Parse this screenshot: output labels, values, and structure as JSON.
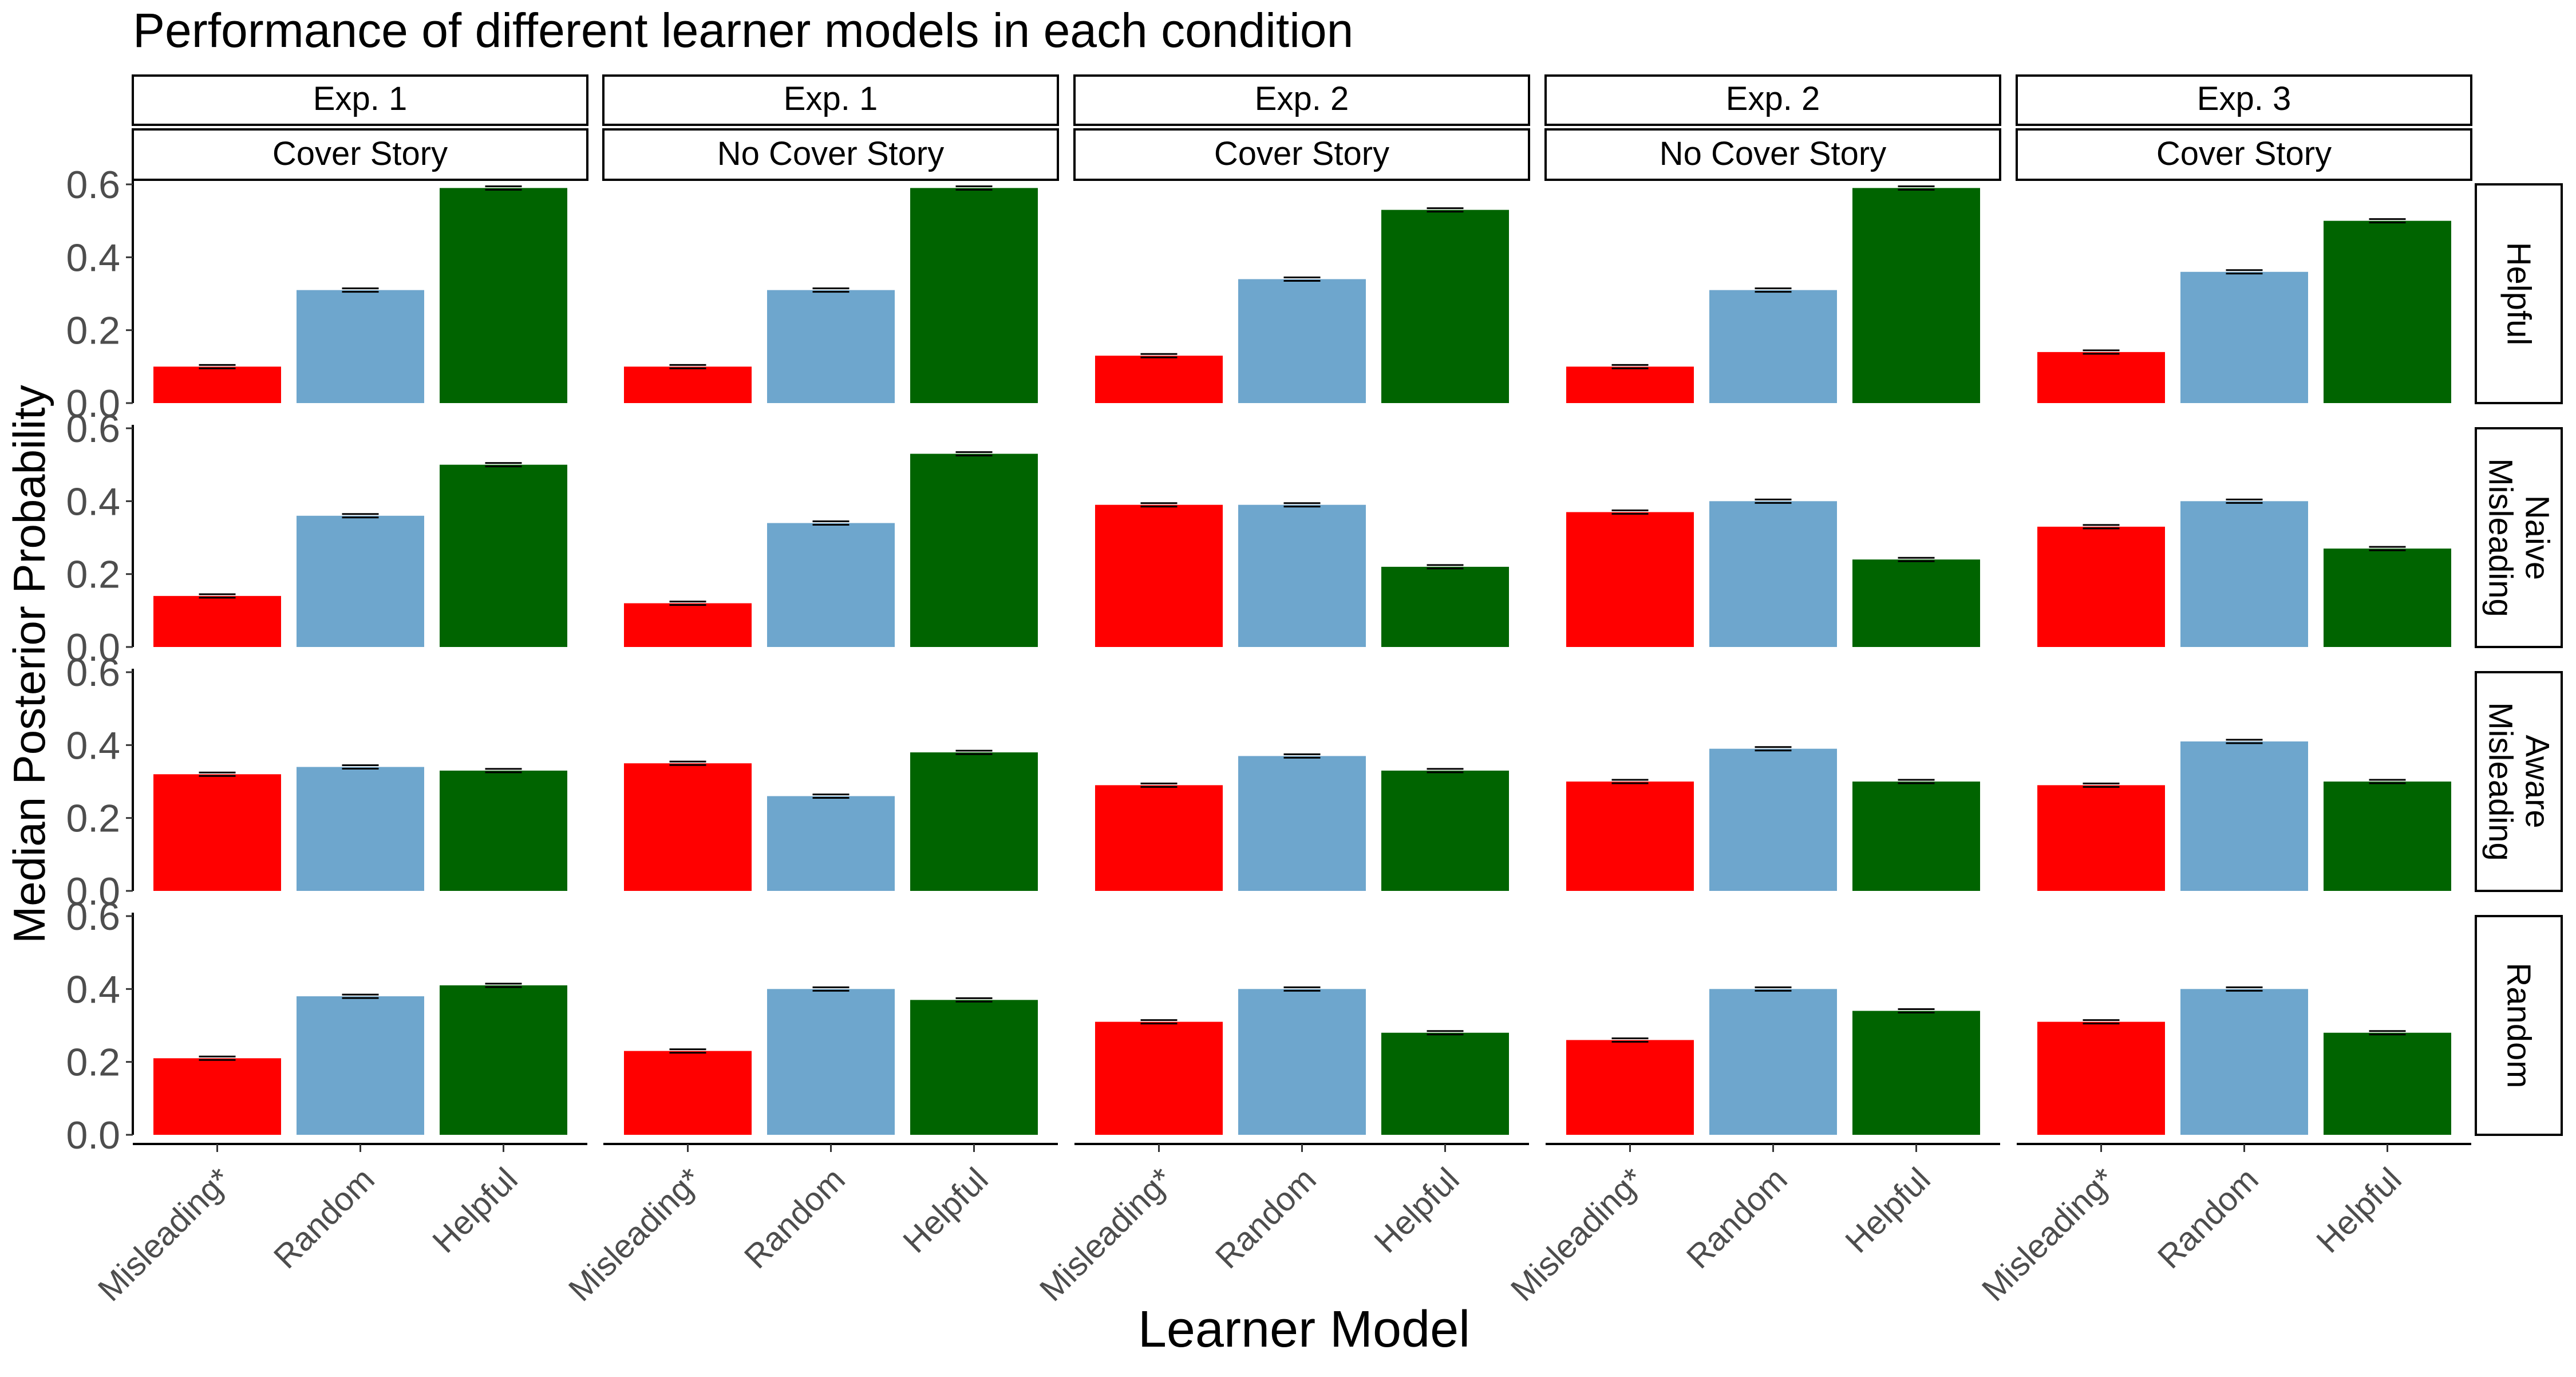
{
  "chart_data": {
    "type": "bar",
    "title": "Performance of different learner models in each condition",
    "xlabel": "Learner Model",
    "ylabel": "Median Posterior Probability",
    "categories": [
      "Misleading*",
      "Random",
      "Helpful"
    ],
    "colors": {
      "Misleading*": "#ff0000",
      "Random": "#6ea6cd",
      "Helpful": "#006400"
    },
    "ylim": [
      0,
      0.6
    ],
    "yticks": [
      "0.0",
      "0.2",
      "0.4",
      "0.6"
    ],
    "columns": [
      {
        "experiment": "Exp. 1",
        "condition": "Cover Story"
      },
      {
        "experiment": "Exp. 1",
        "condition": "No Cover Story"
      },
      {
        "experiment": "Exp. 2",
        "condition": "Cover Story"
      },
      {
        "experiment": "Exp. 2",
        "condition": "No Cover Story"
      },
      {
        "experiment": "Exp. 3",
        "condition": "Cover Story"
      }
    ],
    "rows": [
      {
        "label_lines": [
          "Helpful"
        ]
      },
      {
        "label_lines": [
          "Misleading",
          "Naive"
        ]
      },
      {
        "label_lines": [
          "Misleading",
          "Aware"
        ]
      },
      {
        "label_lines": [
          "Random"
        ]
      }
    ],
    "values": [
      [
        [
          0.1,
          0.31,
          0.59
        ],
        [
          0.1,
          0.31,
          0.59
        ],
        [
          0.13,
          0.34,
          0.53
        ],
        [
          0.1,
          0.31,
          0.59
        ],
        [
          0.14,
          0.36,
          0.5
        ]
      ],
      [
        [
          0.14,
          0.36,
          0.5
        ],
        [
          0.12,
          0.34,
          0.53
        ],
        [
          0.39,
          0.39,
          0.22
        ],
        [
          0.37,
          0.4,
          0.24
        ],
        [
          0.33,
          0.4,
          0.27
        ]
      ],
      [
        [
          0.32,
          0.34,
          0.33
        ],
        [
          0.35,
          0.26,
          0.38
        ],
        [
          0.29,
          0.37,
          0.33
        ],
        [
          0.3,
          0.39,
          0.3
        ],
        [
          0.29,
          0.41,
          0.3
        ]
      ],
      [
        [
          0.21,
          0.38,
          0.41
        ],
        [
          0.23,
          0.4,
          0.37
        ],
        [
          0.31,
          0.4,
          0.28
        ],
        [
          0.26,
          0.4,
          0.34
        ],
        [
          0.31,
          0.4,
          0.28
        ]
      ]
    ],
    "grid": false,
    "legend": "none"
  }
}
